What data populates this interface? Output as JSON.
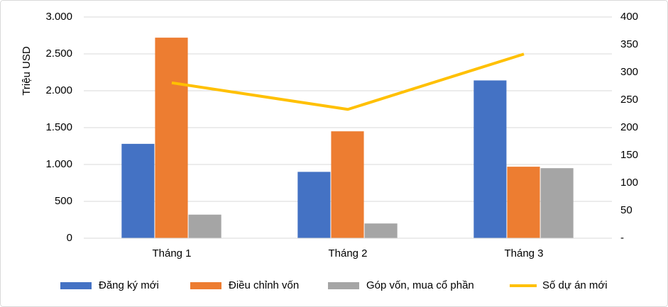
{
  "chart_data": {
    "type": "bar",
    "categories": [
      "Tháng 1",
      "Tháng 2",
      "Tháng 3"
    ],
    "ylabel": "Triệu USD",
    "ylim": [
      0,
      3000
    ],
    "yticks": [
      0,
      500,
      {
        "value": 1000,
        "label": "1.000"
      },
      {
        "value": 1500,
        "label": "1.500"
      },
      {
        "value": 2000,
        "label": "2.000"
      },
      {
        "value": 2500,
        "label": "2.500"
      },
      {
        "value": 3000,
        "label": "3.000"
      }
    ],
    "y2lim": [
      0,
      400
    ],
    "y2ticks": [
      {
        "value": 0,
        "label": "-"
      },
      50,
      100,
      150,
      200,
      250,
      300,
      350,
      400
    ],
    "grid": true,
    "legend": "bottom",
    "series": [
      {
        "name": "Đăng ký mới",
        "color": "#4472c4",
        "values": [
          1280,
          900,
          2140
        ]
      },
      {
        "name": "Điều chỉnh vốn",
        "color": "#ed7d31",
        "values": [
          2720,
          1450,
          970
        ]
      },
      {
        "name": "Góp vốn, mua cổ phần",
        "color": "#a5a5a5",
        "values": [
          320,
          200,
          950
        ]
      },
      {
        "name": "Số dự án mới",
        "color": "#ffc000",
        "type": "line",
        "axis": "y2",
        "values": [
          281,
          233,
          333
        ]
      }
    ]
  }
}
